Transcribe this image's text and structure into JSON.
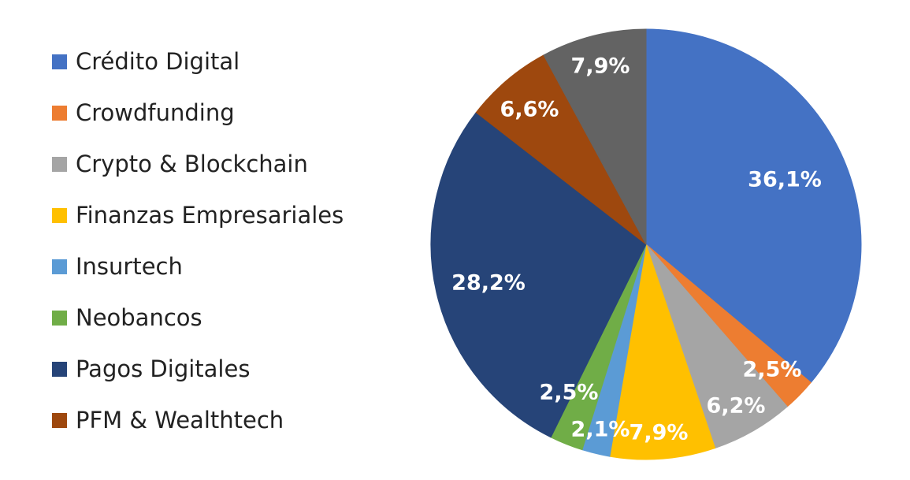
{
  "chart_data": {
    "type": "pie",
    "title": "",
    "legend_position": "left",
    "slices": [
      {
        "name": "Crédito Digital",
        "value": 36.1,
        "label": "36,1%",
        "color": "#4472C4"
      },
      {
        "name": "Crowdfunding",
        "value": 2.5,
        "label": "2,5%",
        "color": "#ED7D31"
      },
      {
        "name": "Crypto & Blockchain",
        "value": 6.2,
        "label": "6,2%",
        "color": "#A5A5A5"
      },
      {
        "name": "Finanzas Empresariales",
        "value": 7.9,
        "label": "7,9%",
        "color": "#FFC000"
      },
      {
        "name": "Insurtech",
        "value": 2.1,
        "label": "2,1%",
        "color": "#5B9BD5"
      },
      {
        "name": "Neobancos",
        "value": 2.5,
        "label": "2,5%",
        "color": "#70AD47"
      },
      {
        "name": "Pagos Digitales",
        "value": 28.2,
        "label": "28,2%",
        "color": "#264478"
      },
      {
        "name": "PFM & Wealthtech",
        "value": 6.6,
        "label": "6,6%",
        "color": "#9E480E"
      },
      {
        "name": "",
        "value": 7.9,
        "label": "7,9%",
        "color": "#636363"
      }
    ]
  },
  "legend": {
    "items": [
      {
        "label": "Crédito Digital",
        "color": "#4472C4"
      },
      {
        "label": "Crowdfunding",
        "color": "#ED7D31"
      },
      {
        "label": "Crypto & Blockchain",
        "color": "#A5A5A5"
      },
      {
        "label": "Finanzas Empresariales",
        "color": "#FFC000"
      },
      {
        "label": "Insurtech",
        "color": "#5B9BD5"
      },
      {
        "label": "Neobancos",
        "color": "#70AD47"
      },
      {
        "label": "Pagos Digitales",
        "color": "#264478"
      },
      {
        "label": "PFM & Wealthtech",
        "color": "#9E480E"
      }
    ]
  }
}
